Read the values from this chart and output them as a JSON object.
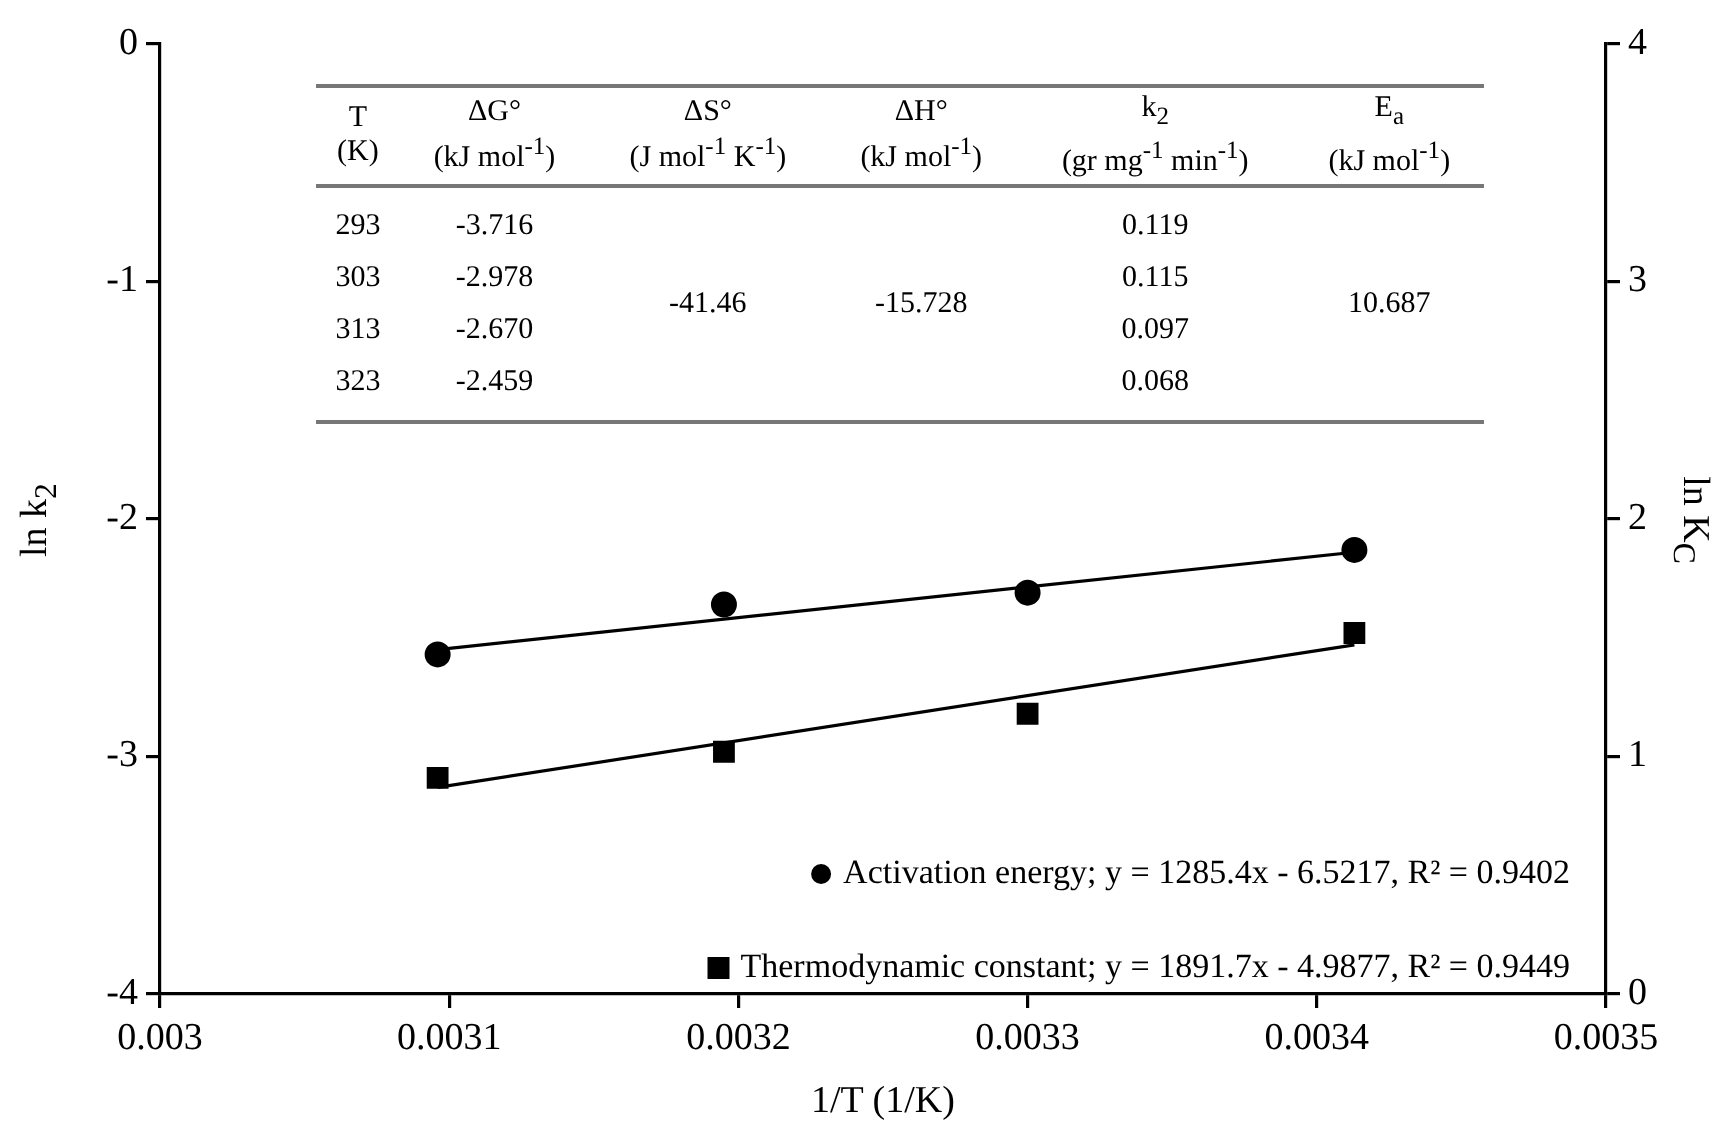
{
  "chart_data": {
    "type": "scatter",
    "xlabel": "1/T (1/K)",
    "ylabel": "ln k$_{2}$",
    "y2label": "ln K$_{C}$",
    "xlim": [
      0.003,
      0.0035
    ],
    "xticks": [
      0.003,
      0.0031,
      0.0032,
      0.0033,
      0.0034,
      0.0035
    ],
    "ylim": [
      -4,
      0
    ],
    "yticks": [
      -4,
      -3,
      -2,
      -1,
      0
    ],
    "y2lim": [
      0,
      4
    ],
    "y2ticks": [
      0,
      1,
      2,
      3,
      4
    ],
    "grid": false,
    "legend": "bottom right",
    "series": [
      {
        "name": "Activation energy; y = 1285.4x - 6.5217, R² = 0.9402",
        "type": "scatter",
        "marker": "circle",
        "color": "#000000",
        "x": [
          0.003096,
          0.003195,
          0.0033,
          0.003413
        ],
        "values": [
          -2.57,
          -2.36,
          -2.31,
          -2.13
        ]
      },
      {
        "name": "Thermodynamic constant; y = 1891.7x - 4.9877, R² = 0.9449",
        "type": "scatter",
        "marker": "square",
        "axis": "y2",
        "color": "#000000",
        "x": [
          0.003096,
          0.003195,
          0.0033,
          0.003413
        ],
        "values": [
          0.91,
          1.02,
          1.18,
          1.52
        ]
      },
      {
        "type": "line",
        "marker": "none",
        "color": "#000000",
        "x": [
          0.003096,
          0.003413
        ],
        "values": [
          -2.55,
          -2.14
        ]
      },
      {
        "type": "line",
        "marker": "none",
        "axis": "y2",
        "color": "#000000",
        "x": [
          0.003096,
          0.003413
        ],
        "values": [
          0.87,
          1.47
        ]
      }
    ],
    "annotations": [
      "T\n(K)",
      "ΔG°\n(kJ mol$^{-1}$)",
      "ΔS°\n(J mol$^{-1}$ K$^{-1}$)",
      "ΔH°\n(kJ mol$^{-1}$)",
      "k$_{2}$\n(gr mg$^{-1}$ min$^{-1}$)",
      "E$_{a}$\n(kJ mol$^{-1}$)",
      "293\n303\n313\n323",
      "-3.716\n-2.978\n-2.670\n-2.459",
      "-41.46",
      "-15.728",
      "0.119\n0.115\n0.097\n0.068",
      "10.687"
    ]
  }
}
